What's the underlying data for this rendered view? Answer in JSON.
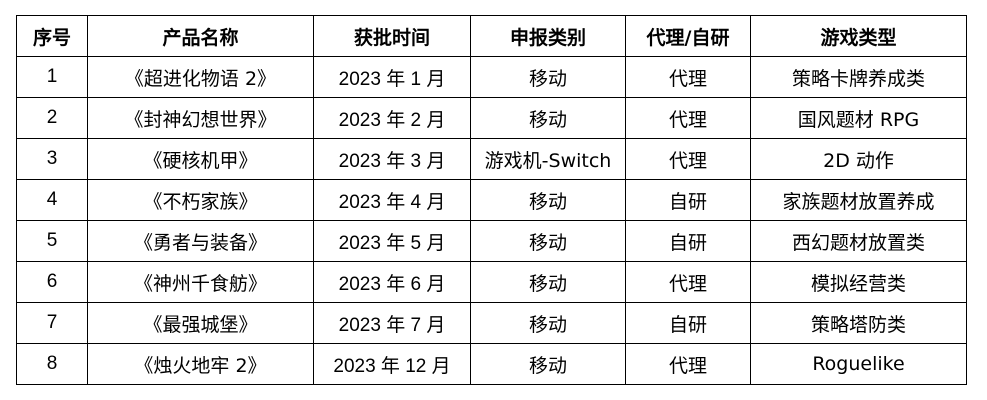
{
  "headers": [
    "序号",
    "产品名称",
    "获批时间",
    "申报类别",
    "代理/自研",
    "游戏类型"
  ],
  "rows": [
    [
      "1",
      "《超进化物语 2》",
      "2023 年 1 月",
      "移动",
      "代理",
      "策略卡牌养成类"
    ],
    [
      "2",
      "《封神幻想世界》",
      "2023 年 2 月",
      "移动",
      "代理",
      "国风题材 RPG"
    ],
    [
      "3",
      "《硬核机甲》",
      "2023 年 3 月",
      "游戏机-Switch",
      "代理",
      "2D 动作"
    ],
    [
      "4",
      "《不朽家族》",
      "2023 年 4 月",
      "移动",
      "自研",
      "家族题材放置养成"
    ],
    [
      "5",
      "《勇者与装备》",
      "2023 年 5 月",
      "移动",
      "自研",
      "西幻题材放置类"
    ],
    [
      "6",
      "《神州千食舫》",
      "2023 年 6 月",
      "移动",
      "代理",
      "模拟经营类"
    ],
    [
      "7",
      "《最强城堡》",
      "2023 年 7 月",
      "移动",
      "自研",
      "策略塔防类"
    ],
    [
      "8",
      "《烛火地牢 2》",
      "2023 年 12 月",
      "移动",
      "代理",
      "Roguelike"
    ]
  ]
}
